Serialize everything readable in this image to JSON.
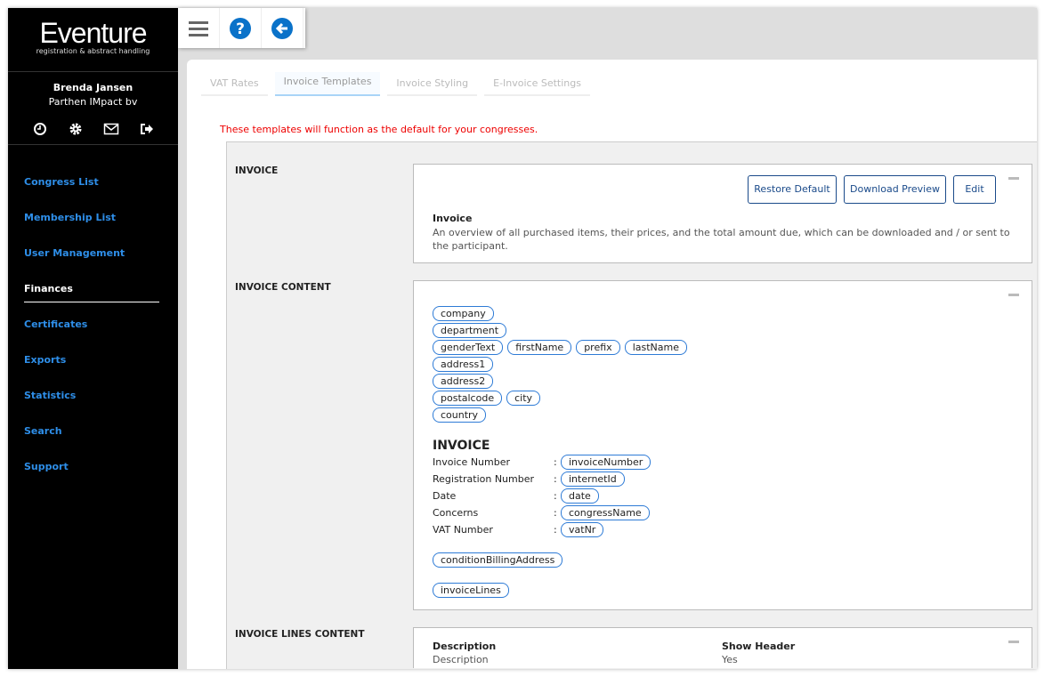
{
  "app": {
    "logo": "Eventure",
    "tagline": "registration & abstract handling"
  },
  "user": {
    "name": "Brenda Jansen",
    "company": "Parthen IMpact bv"
  },
  "user_icons": [
    "clock-icon",
    "gear-icon",
    "mail-icon",
    "logout-icon"
  ],
  "nav": [
    {
      "label": "Congress List"
    },
    {
      "label": "Membership List"
    },
    {
      "label": "User Management"
    },
    {
      "label": "Finances",
      "active": true
    },
    {
      "label": "Certificates"
    },
    {
      "label": "Exports"
    },
    {
      "label": "Statistics"
    },
    {
      "label": "Search"
    },
    {
      "label": "Support"
    }
  ],
  "toolbar": [
    "menu-icon",
    "help-icon",
    "back-icon"
  ],
  "colors": {
    "accent": "#0a72c9",
    "link": "#2e8ee8",
    "note": "#e00000",
    "button": "#1a4a8a"
  },
  "tabs": [
    {
      "label": "VAT Rates"
    },
    {
      "label": "Invoice Templates",
      "active": true
    },
    {
      "label": "Invoice Styling"
    },
    {
      "label": "E-Invoice Settings"
    }
  ],
  "note": "These templates will function as the default for your congresses.",
  "sections": {
    "invoice": {
      "label": "INVOICE",
      "buttons": {
        "restore": "Restore Default",
        "preview": "Download Preview",
        "edit": "Edit"
      },
      "title": "Invoice",
      "description": "An overview of all purchased items, their prices, and the total amount due, which can be downloaded and / or sent to the participant."
    },
    "content": {
      "label": "INVOICE CONTENT",
      "address_rows": [
        [
          "company"
        ],
        [
          "department"
        ],
        [
          "genderText",
          "firstName",
          "prefix",
          "lastName"
        ],
        [
          "address1"
        ],
        [
          "address2"
        ],
        [
          "postalcode",
          "city"
        ],
        [
          "country"
        ]
      ],
      "heading": "INVOICE",
      "fields": [
        {
          "key": "Invoice Number",
          "tag": "invoiceNumber"
        },
        {
          "key": "Registration Number",
          "tag": "internetId"
        },
        {
          "key": "Date",
          "tag": "date"
        },
        {
          "key": "Concerns",
          "tag": "congressName"
        },
        {
          "key": "VAT Number",
          "tag": "vatNr"
        }
      ],
      "sep": ":",
      "condition": "conditionBillingAddress",
      "lines": "invoiceLines"
    },
    "lines": {
      "label": "INVOICE LINES CONTENT",
      "col1_head": "Description",
      "col1_val": "Description",
      "col2_head": "Show Header",
      "col2_val": "Yes"
    }
  }
}
